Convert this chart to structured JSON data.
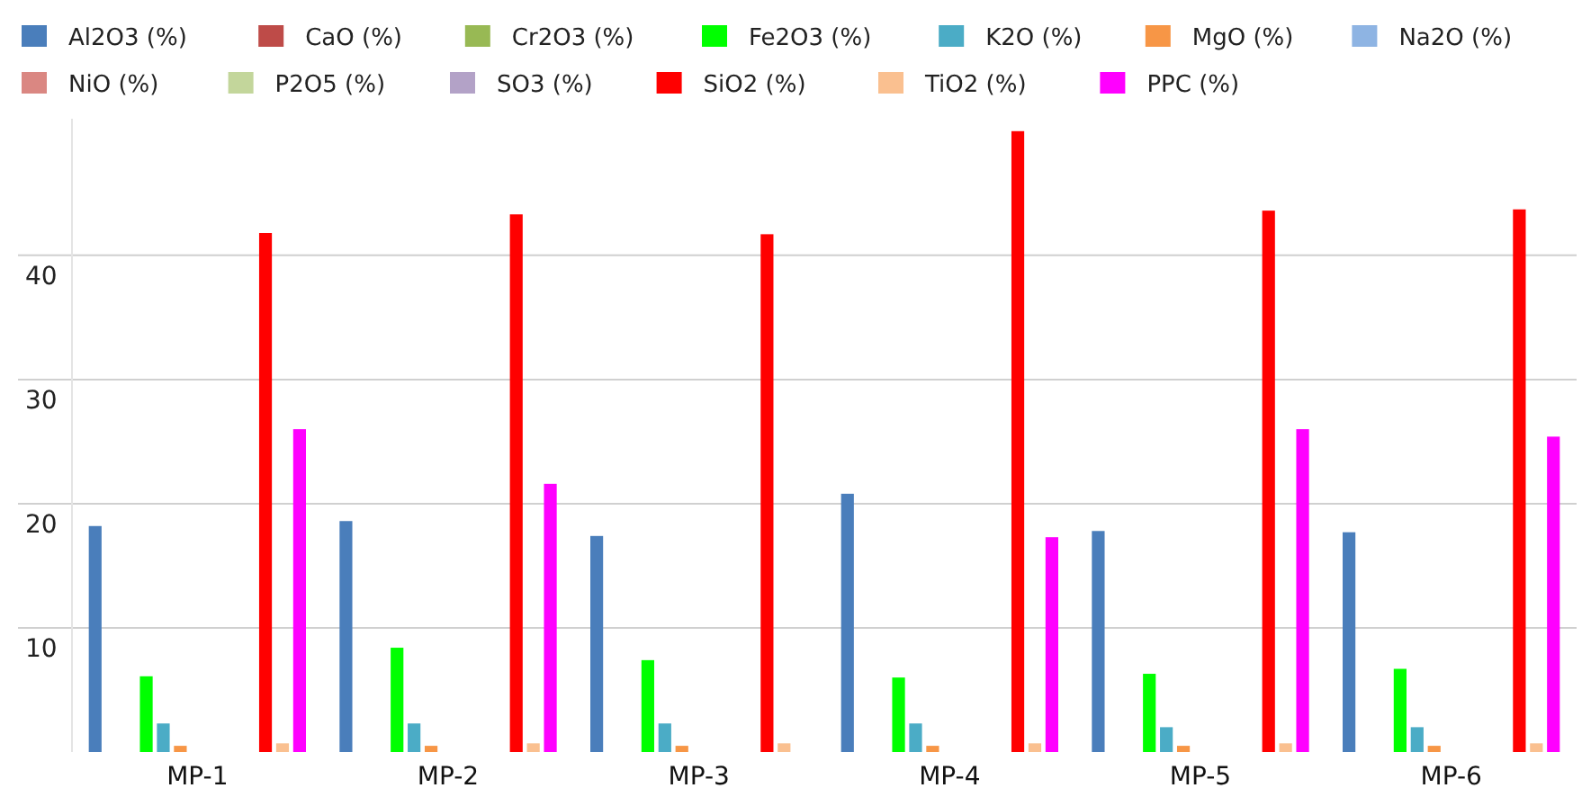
{
  "chart_data": {
    "type": "bar",
    "categories": [
      "MP-1",
      "MP-2",
      "MP-3",
      "MP-4",
      "MP-5",
      "MP-6"
    ],
    "series": [
      {
        "name": "Al2O3 (%)",
        "color": "#4a7ebb",
        "values": [
          18.2,
          18.6,
          17.4,
          20.8,
          17.8,
          17.7
        ]
      },
      {
        "name": "CaO (%)",
        "color": "#be4b48",
        "values": [
          null,
          null,
          null,
          null,
          null,
          null
        ]
      },
      {
        "name": "Cr2O3 (%)",
        "color": "#98b954",
        "values": [
          null,
          null,
          null,
          null,
          null,
          null
        ]
      },
      {
        "name": "Fe2O3 (%)",
        "color": "#00ff00",
        "values": [
          6.1,
          8.4,
          7.4,
          6.0,
          6.3,
          6.7
        ]
      },
      {
        "name": "K2O (%)",
        "color": "#4bacc6",
        "values": [
          2.3,
          2.3,
          2.3,
          2.3,
          2.0,
          2.0
        ]
      },
      {
        "name": "MgO (%)",
        "color": "#f79646",
        "values": [
          0.5,
          0.5,
          0.5,
          0.5,
          0.5,
          0.5
        ]
      },
      {
        "name": "Na2O (%)",
        "color": "#8eb4e3",
        "values": [
          null,
          null,
          null,
          null,
          null,
          null
        ]
      },
      {
        "name": "NiO (%)",
        "color": "#da8782",
        "values": [
          null,
          null,
          null,
          null,
          null,
          null
        ]
      },
      {
        "name": "P2O5 (%)",
        "color": "#c3d69b",
        "values": [
          null,
          null,
          null,
          null,
          null,
          null
        ]
      },
      {
        "name": "SO3 (%)",
        "color": "#b3a2c7",
        "values": [
          null,
          null,
          null,
          null,
          null,
          null
        ]
      },
      {
        "name": "SiO2 (%)",
        "color": "#ff0000",
        "values": [
          41.8,
          43.3,
          41.7,
          50,
          43.6,
          43.7
        ]
      },
      {
        "name": "TiO2 (%)",
        "color": "#fac090",
        "values": [
          0.7,
          0.7,
          0.7,
          0.7,
          0.7,
          0.7
        ]
      },
      {
        "name": "PPC (%)",
        "color": "#ff00ff",
        "values": [
          26.0,
          21.6,
          null,
          17.3,
          26.0,
          25.4
        ]
      }
    ],
    "ylim": [
      0,
      51
    ],
    "yticks": [
      10,
      20,
      30,
      40
    ],
    "grid": "y",
    "legend": "top"
  }
}
